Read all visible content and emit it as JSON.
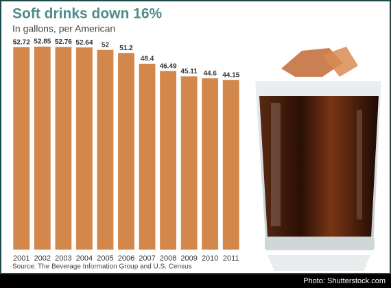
{
  "chart_data": {
    "type": "bar",
    "title": "Soft drinks down 16%",
    "subtitle": "In gallons, per American",
    "categories": [
      "2001",
      "2002",
      "2003",
      "2004",
      "2005",
      "2006",
      "2007",
      "2008",
      "2009",
      "2010",
      "2011"
    ],
    "values": [
      52.72,
      52.85,
      52.76,
      52.64,
      52,
      51.2,
      48.4,
      46.49,
      45.11,
      44.6,
      44.15
    ],
    "color": "#d3874b",
    "source": "Source: The Beverage Information Group and U.S. Census",
    "credit": "Photo: Shutterstock.com"
  }
}
